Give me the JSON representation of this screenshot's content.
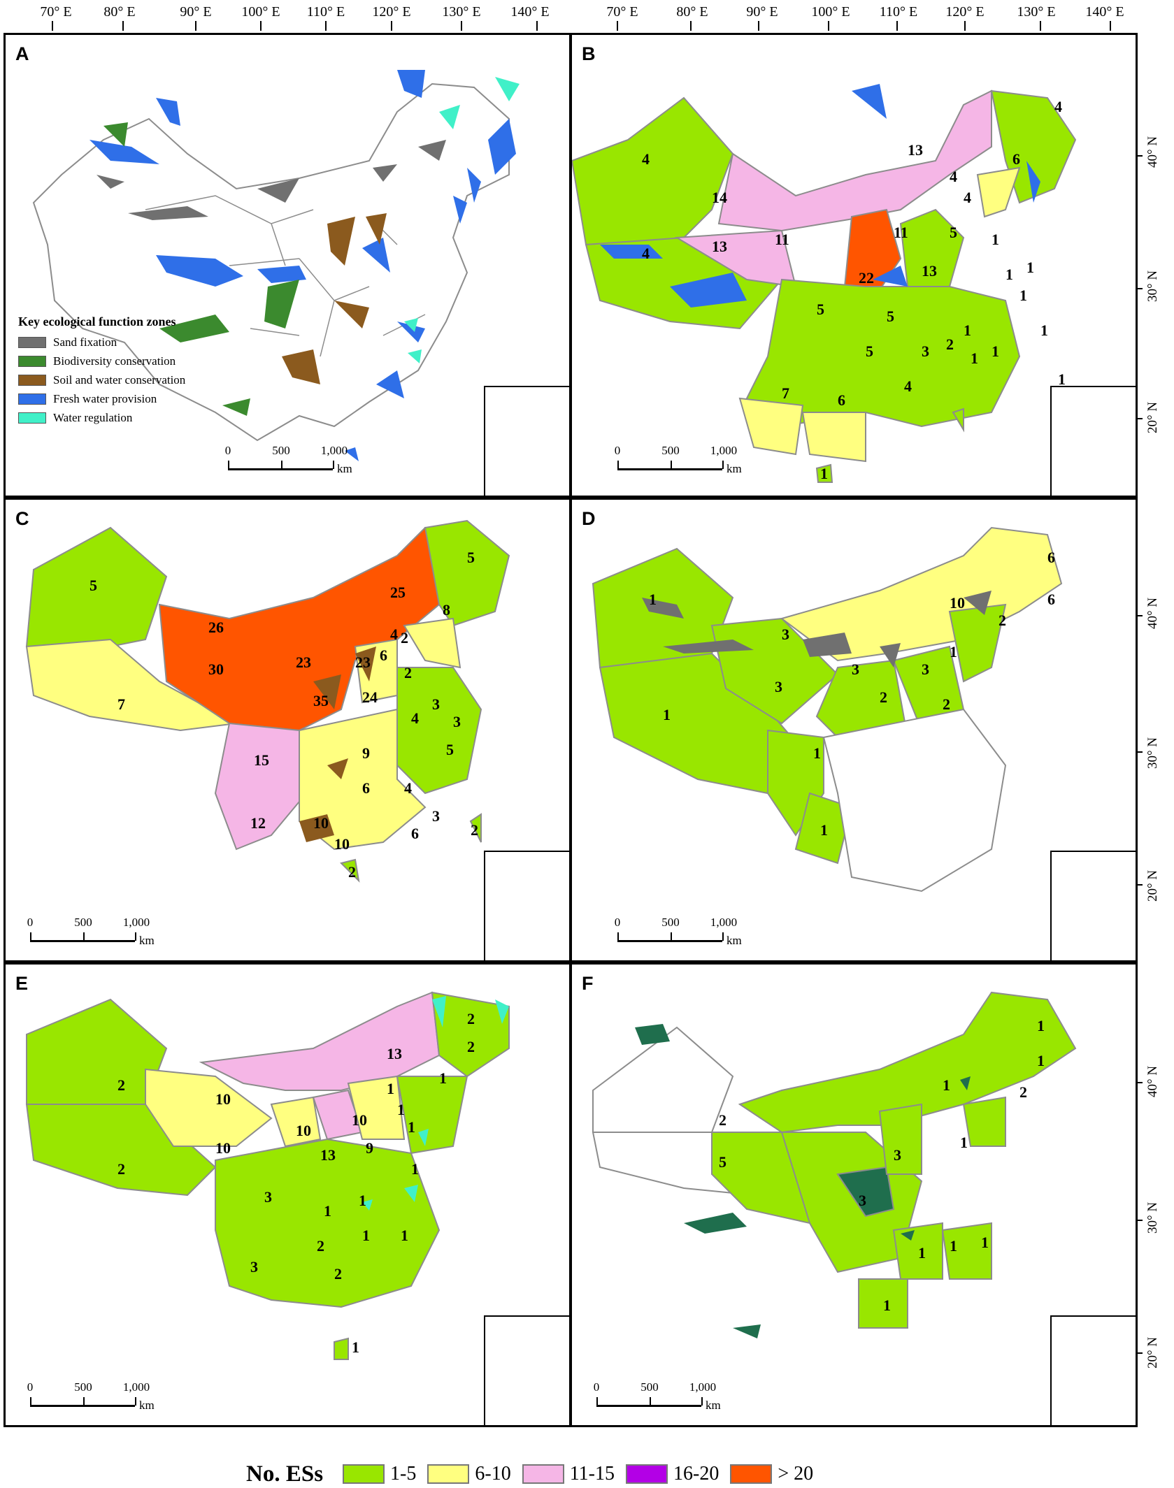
{
  "longitude_labels": [
    "70° E",
    "80° E",
    "90° E",
    "100° E",
    "110° E",
    "120° E",
    "130° E",
    "140° E"
  ],
  "latitude_labels": [
    "40° N",
    "30° N",
    "20° N"
  ],
  "scale_bar": {
    "ticks": [
      "0",
      "500",
      "1,000"
    ],
    "unit": "km"
  },
  "colors": {
    "class_1_5": "#99e600",
    "class_6_10": "#ffff80",
    "class_11_15": "#f5b6e6",
    "class_16_20": "#b300e6",
    "class_gt20": "#ff5500",
    "sand": "#707070",
    "biodiversity": "#3b8a2e",
    "soil_water": "#8b5a1e",
    "fresh_water": "#2f6fe8",
    "water_regulation": "#40f0c8",
    "hotspot_dark_green": "#1f6e4d",
    "border": "#8c8c8c"
  },
  "panels": {
    "a": {
      "letter": "A",
      "legend_title": "Key ecological function zones",
      "legend_items": [
        {
          "label": "Sand fixation",
          "color": "#707070"
        },
        {
          "label": "Biodiversity conservation",
          "color": "#3b8a2e"
        },
        {
          "label": "Soil and water conservation",
          "color": "#8b5a1e"
        },
        {
          "label": "Fresh water provision",
          "color": "#2f6fe8"
        },
        {
          "label": "Water regulation",
          "color": "#40f0c8"
        }
      ]
    },
    "b": {
      "letter": "B",
      "numbers": [
        "4",
        "4",
        "4",
        "6",
        "13",
        "14",
        "13",
        "11",
        "11",
        "5",
        "4",
        "1",
        "1",
        "1",
        "22",
        "13",
        "1",
        "1",
        "1",
        "5",
        "5",
        "5",
        "3",
        "2",
        "1",
        "1",
        "7",
        "6",
        "4",
        "1",
        "1",
        "4"
      ]
    },
    "c": {
      "letter": "C",
      "numbers": [
        "5",
        "5",
        "25",
        "26",
        "30",
        "7",
        "23",
        "23",
        "35",
        "24",
        "8",
        "4",
        "2",
        "6",
        "2",
        "3",
        "4",
        "3",
        "15",
        "9",
        "6",
        "5",
        "4",
        "3",
        "12",
        "10",
        "10",
        "6",
        "2",
        "2"
      ]
    },
    "d": {
      "letter": "D",
      "numbers": [
        "1",
        "10",
        "6",
        "6",
        "3",
        "2",
        "3",
        "3",
        "1",
        "3",
        "2",
        "2",
        "1",
        "1",
        "1"
      ]
    },
    "e": {
      "letter": "E",
      "numbers": [
        "2",
        "2",
        "10",
        "10",
        "10",
        "13",
        "13",
        "10",
        "9",
        "2",
        "2",
        "1",
        "1",
        "1",
        "1",
        "1",
        "3",
        "3",
        "2",
        "2",
        "1",
        "1",
        "1",
        "1",
        "1"
      ]
    },
    "f": {
      "letter": "F",
      "numbers": [
        "1",
        "1",
        "1",
        "2",
        "2",
        "5",
        "3",
        "3",
        "1",
        "1",
        "1",
        "1",
        "1"
      ]
    }
  },
  "bottom_legend": {
    "title": "No. ESs",
    "items": [
      {
        "label": "1-5",
        "color": "#99e600"
      },
      {
        "label": "6-10",
        "color": "#ffff80"
      },
      {
        "label": "11-15",
        "color": "#f5b6e6"
      },
      {
        "label": "16-20",
        "color": "#b300e6"
      },
      {
        "label": "> 20",
        "color": "#ff5500"
      }
    ]
  }
}
